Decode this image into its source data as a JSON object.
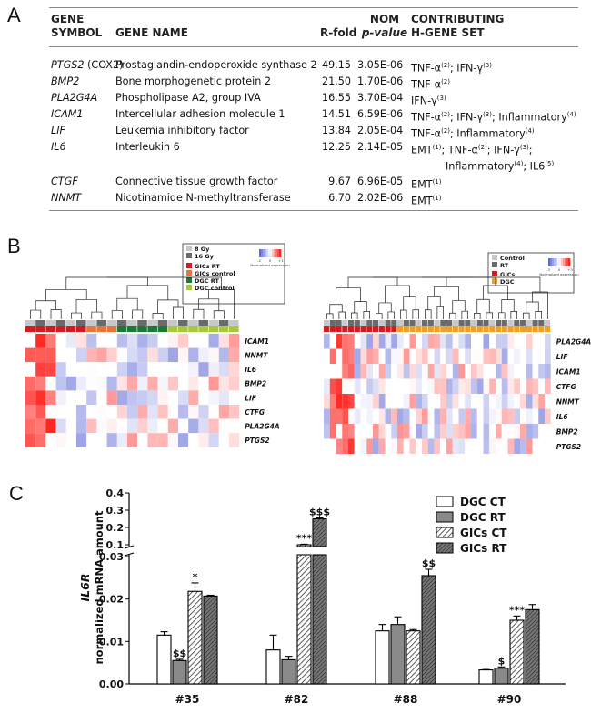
{
  "panel_a": {
    "letter": "A",
    "headers": {
      "gene_symbol": [
        "GENE",
        "SYMBOL"
      ],
      "gene_name": "GENE NAME",
      "r_fold": "R-fold",
      "nom_pvalue": [
        "NOM",
        "p-value"
      ],
      "contributing": [
        "CONTRIBUTING",
        "H-GENE SET"
      ]
    },
    "rows": [
      {
        "symbol": "PTGS2",
        "symbol_extra": " (COX2)",
        "name": "Prostaglandin-endoperoxide synthase 2",
        "rfold": "49.15",
        "pvalue": "3.05E-06",
        "sets": [
          "TNF-α(2); IFN-γ(3)"
        ]
      },
      {
        "symbol": "BMP2",
        "symbol_extra": "",
        "name": "Bone morphogenetic protein 2",
        "rfold": "21.50",
        "pvalue": "1.70E-06",
        "sets": [
          "TNF-α(2)"
        ]
      },
      {
        "symbol": "PLA2G4A",
        "symbol_extra": "",
        "name": "Phospholipase A2, group IVA",
        "rfold": "16.55",
        "pvalue": "3.70E-04",
        "sets": [
          "IFN-γ(3)"
        ]
      },
      {
        "symbol": "ICAM1",
        "symbol_extra": "",
        "name": "Intercellular adhesion molecule 1",
        "rfold": "14.51",
        "pvalue": "6.59E-06",
        "sets": [
          "TNF-α(2); IFN-γ(3); Inflammatory(4)"
        ]
      },
      {
        "symbol": "LIF",
        "symbol_extra": "",
        "name": "Leukemia inhibitory factor",
        "rfold": "13.84",
        "pvalue": "2.05E-04",
        "sets": [
          "TNF-α(2); Inflammatory(4)"
        ]
      },
      {
        "symbol": "IL6",
        "symbol_extra": "",
        "name": "Interleukin 6",
        "rfold": "12.25",
        "pvalue": "2.14E-05",
        "sets": [
          "EMT(1); TNF-α(2); IFN-γ(3);",
          "Inflammatory(4); IL6(5)"
        ]
      },
      {
        "symbol": "CTGF",
        "symbol_extra": "",
        "name": "Connective tissue growth factor",
        "rfold": "9.67",
        "pvalue": "6.96E-05",
        "sets": [
          "EMT(1)"
        ]
      },
      {
        "symbol": "NNMT",
        "symbol_extra": "",
        "name": "Nicotinamide N-methyltransferase",
        "rfold": "6.70",
        "pvalue": "2.02E-06",
        "sets": [
          "EMT(1)"
        ]
      }
    ]
  },
  "panel_b": {
    "letter": "B",
    "left": {
      "legend": {
        "dose": [
          "8 Gy",
          "16 Gy"
        ],
        "groups": [
          "GICs RT",
          "GICs control",
          "DGC RT",
          "DGC control"
        ],
        "scale_label": "Normalized expression",
        "scale_ticks": [
          "-2",
          "0",
          "+1"
        ]
      },
      "genes": [
        "ICAM1",
        "NNMT",
        "IL6",
        "BMP2",
        "LIF",
        "CTFG",
        "PLA2G4A",
        "PTGS2"
      ]
    },
    "right": {
      "legend": {
        "treatment": [
          "Control",
          "RT"
        ],
        "cells": [
          "GICs",
          "DGC"
        ],
        "scale_label": "Normalized expression",
        "scale_ticks": [
          "-3",
          "0",
          "+3"
        ]
      },
      "genes": [
        "PLA2G4A",
        "LIF",
        "ICAM1",
        "CTFG",
        "NNMT",
        "IL6",
        "BMP2",
        "PTGS2"
      ]
    }
  },
  "colors": {
    "gics_rt": "#d7191c",
    "gics_ctrl": "#e8743b",
    "dgc_rt": "#1a7a34",
    "dgc_ctrl": "#a6c93a",
    "dose8": "#c8c8c8",
    "dose16": "#6a6a6a",
    "gics": "#d7191c",
    "dgc": "#f0a020"
  },
  "chart_data": {
    "type": "bar",
    "panel_letter": "C",
    "title": "",
    "ylabel_gene": "IL6R",
    "ylabel": "normalized mRNA amount",
    "categories": [
      "#35",
      "#82",
      "#88",
      "#90"
    ],
    "axis": {
      "lower_range": [
        0,
        0.03
      ],
      "lower_ticks": [
        "0.00",
        "0.01",
        "0.02",
        "0.03"
      ],
      "upper_range": [
        0.1,
        0.4
      ],
      "upper_ticks": [
        "0.1",
        "0.2",
        "0.3",
        "0.4"
      ],
      "break": true
    },
    "legend_position": "top-right",
    "series": [
      {
        "name": "DGC CT",
        "style": "white",
        "values": [
          0.0115,
          0.008,
          0.0125,
          0.0033
        ],
        "errors": [
          0.0008,
          0.0035,
          0.0015,
          0.0001
        ],
        "annotations": [
          "",
          "",
          "",
          ""
        ]
      },
      {
        "name": "DGC RT",
        "style": "gray",
        "values": [
          0.0055,
          0.0057,
          0.014,
          0.0037
        ],
        "errors": [
          0.0003,
          0.0008,
          0.0018,
          0.0003
        ],
        "annotations": [
          "$$",
          "",
          "",
          "$"
        ]
      },
      {
        "name": "GICs CT",
        "style": "hatched",
        "values": [
          0.0218,
          0.1,
          0.0125,
          0.015
        ],
        "errors": [
          0.002,
          0.003,
          0.0003,
          0.001
        ],
        "annotations": [
          "*",
          "***",
          "",
          "***"
        ]
      },
      {
        "name": "GICs RT",
        "style": "dense-hatched",
        "values": [
          0.0207,
          0.25,
          0.0255,
          0.0175
        ],
        "errors": [
          0.0002,
          0.005,
          0.0015,
          0.0012
        ],
        "annotations": [
          "",
          "$$$",
          "$$",
          ""
        ]
      }
    ]
  }
}
